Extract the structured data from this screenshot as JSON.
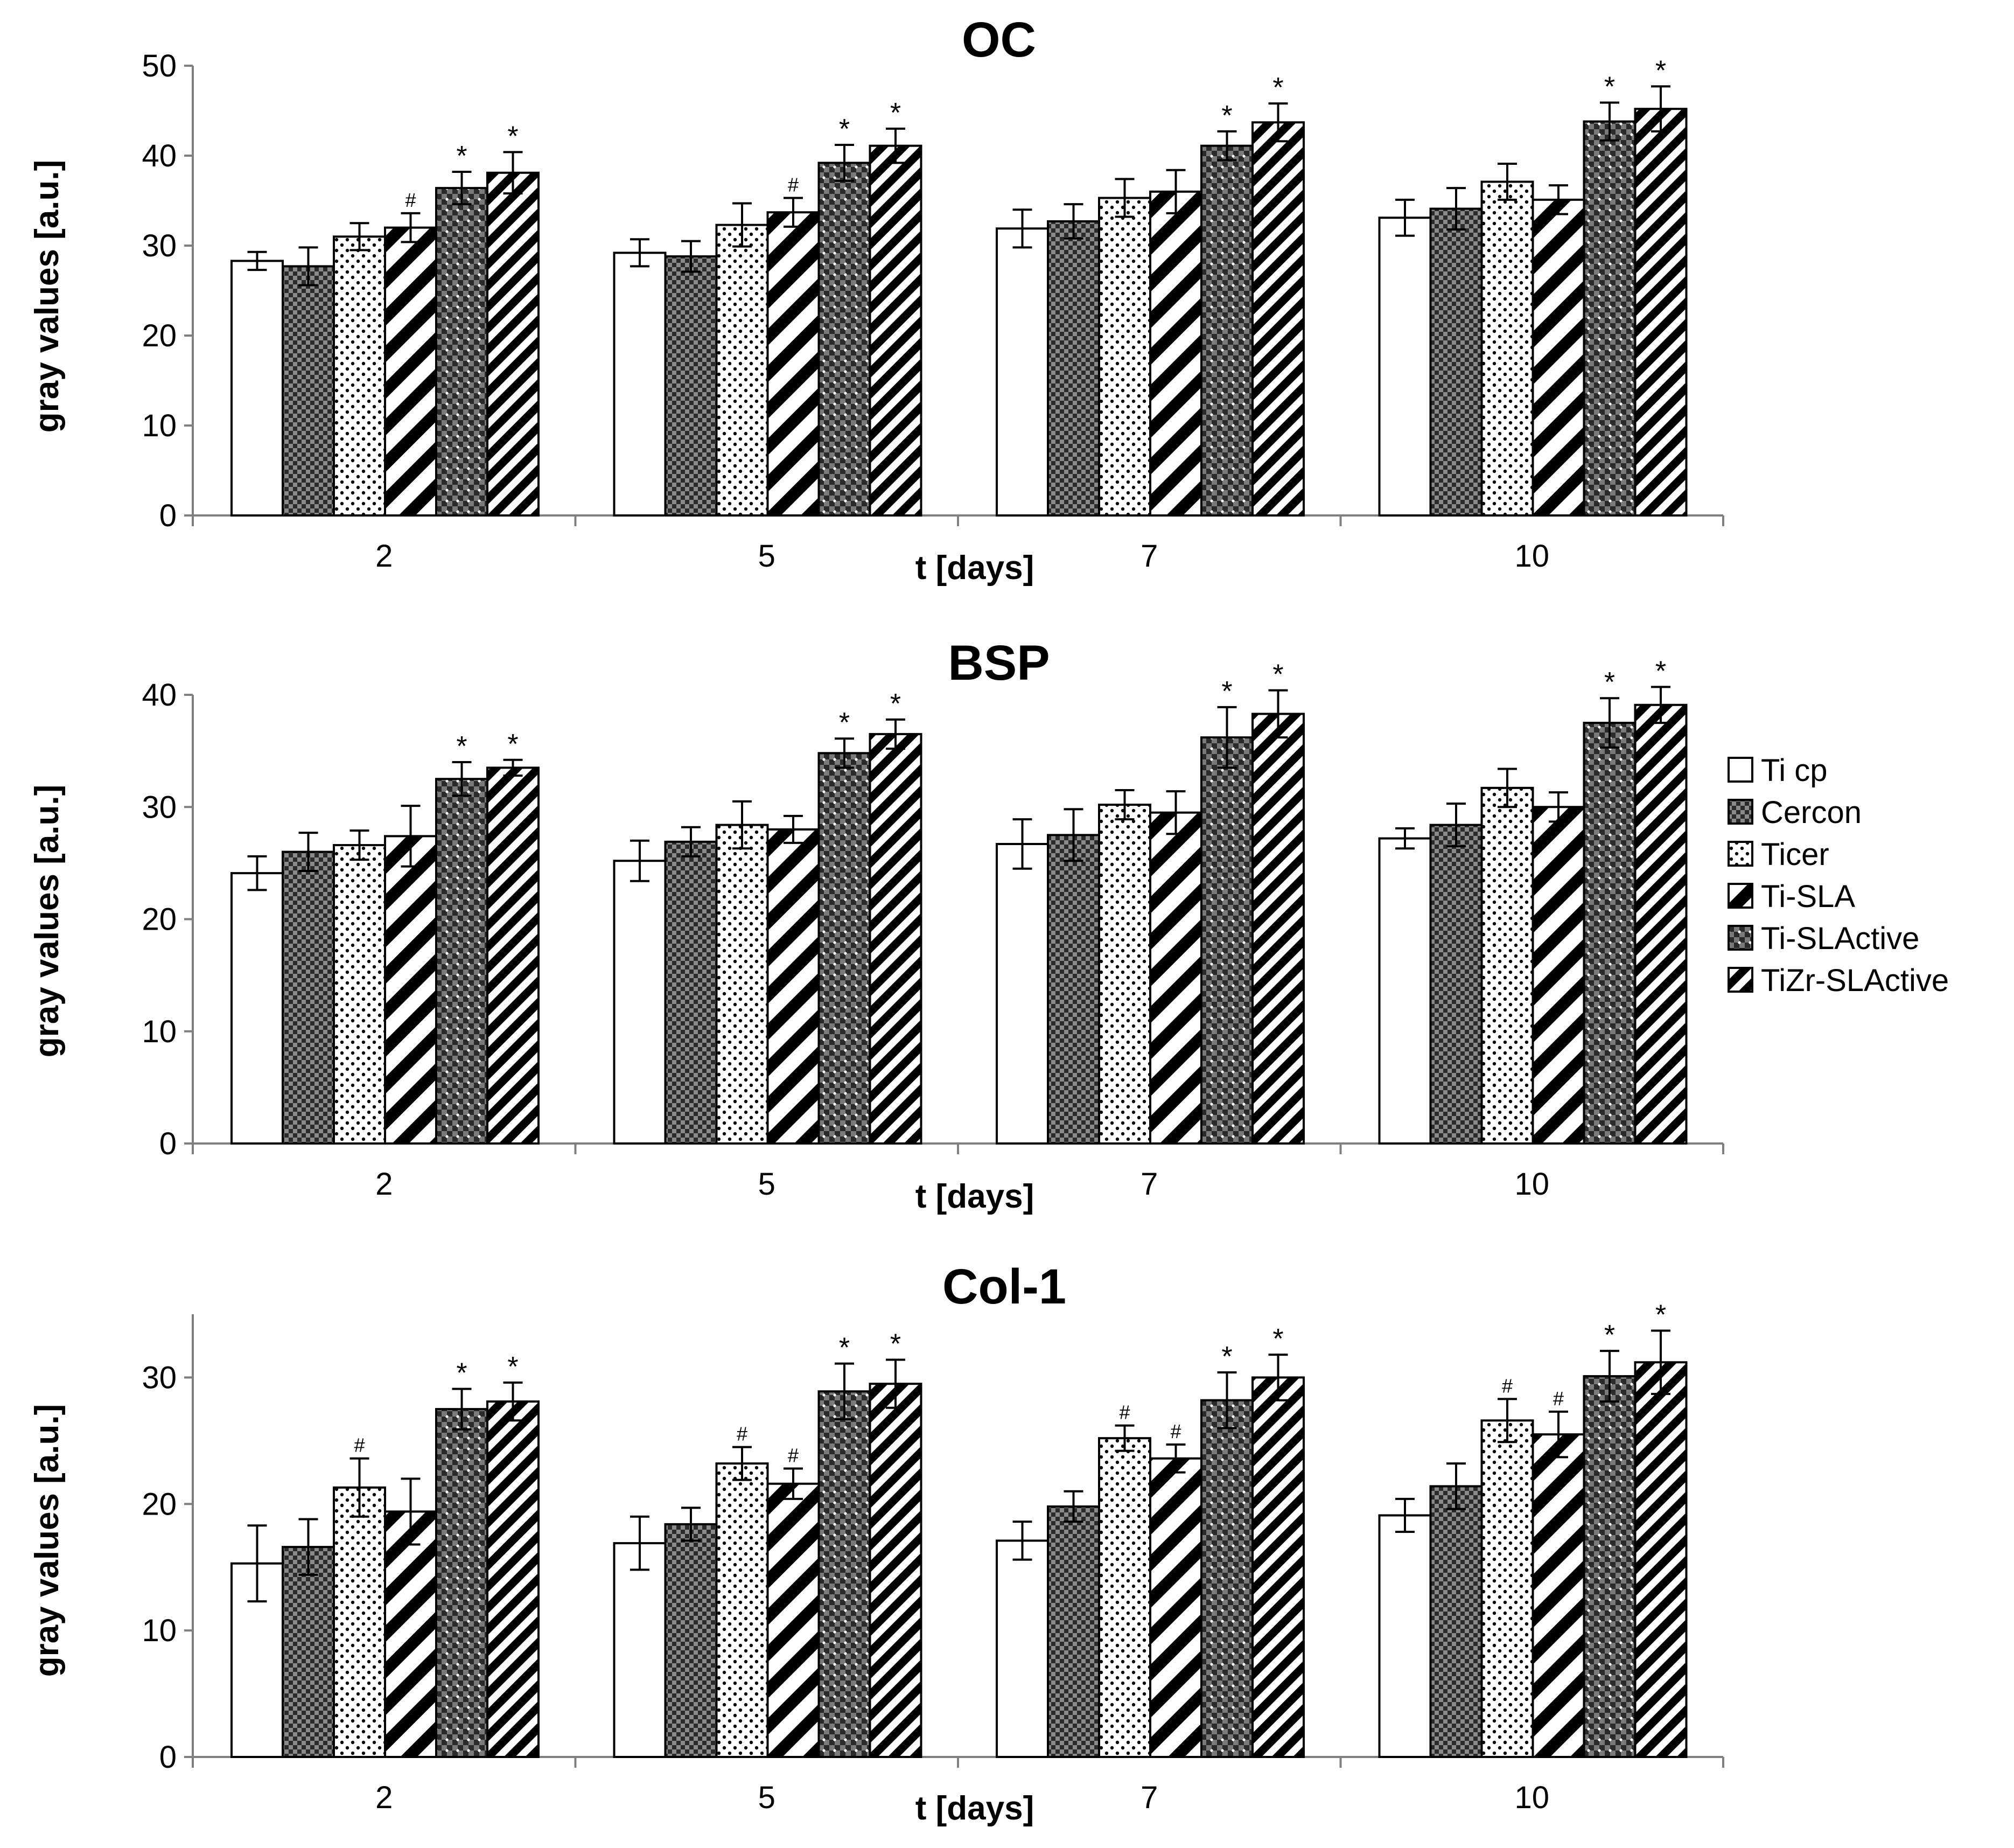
{
  "figure": {
    "legend": [
      {
        "name": "Ti cp",
        "pattern": "solid-white"
      },
      {
        "name": "Cercon",
        "pattern": "check-dark"
      },
      {
        "name": "Ticer",
        "pattern": "dots-light"
      },
      {
        "name": "Ti-SLA",
        "pattern": "diag-bold"
      },
      {
        "name": "Ti-SLActive",
        "pattern": "check-dark-dots"
      },
      {
        "name": "TiZr-SLActive",
        "pattern": "diag-fine"
      }
    ],
    "colors": {
      "bar_outline": "#000000",
      "axis": "#7f7f7f",
      "text": "#000000",
      "background": "#ffffff"
    }
  },
  "chart_data": [
    {
      "type": "bar",
      "title": "OC",
      "xlabel": "t [days]",
      "ylabel": "gray values [a.u.]",
      "ylim": [
        0,
        50
      ],
      "yticks": [
        0,
        10,
        20,
        30,
        40,
        50
      ],
      "categories": [
        "2",
        "5",
        "7",
        "10"
      ],
      "series": [
        {
          "name": "Ti cp",
          "values": [
            28.3,
            29.2,
            31.9,
            33.1
          ],
          "errors": [
            1.0,
            1.5,
            2.1,
            2.0
          ],
          "marks": [
            "",
            "",
            "",
            ""
          ]
        },
        {
          "name": "Cercon",
          "values": [
            27.7,
            28.8,
            32.7,
            34.1
          ],
          "errors": [
            2.1,
            1.7,
            1.9,
            2.3
          ],
          "marks": [
            "",
            "",
            "",
            ""
          ]
        },
        {
          "name": "Ticer",
          "values": [
            31.0,
            32.3,
            35.3,
            37.1
          ],
          "errors": [
            1.5,
            2.4,
            2.1,
            2.0
          ],
          "marks": [
            "",
            "",
            "",
            ""
          ]
        },
        {
          "name": "Ti-SLA",
          "values": [
            32.0,
            33.7,
            36.0,
            35.1
          ],
          "errors": [
            1.6,
            1.6,
            2.4,
            1.6
          ],
          "marks": [
            "#",
            "#",
            "",
            ""
          ]
        },
        {
          "name": "Ti-SLActive",
          "values": [
            36.4,
            39.2,
            41.1,
            43.8
          ],
          "errors": [
            1.8,
            2.0,
            1.6,
            2.1
          ],
          "marks": [
            "*",
            "*",
            "*",
            "*"
          ]
        },
        {
          "name": "TiZr-SLActive",
          "values": [
            38.1,
            41.1,
            43.7,
            45.2
          ],
          "errors": [
            2.3,
            1.9,
            2.1,
            2.5
          ],
          "marks": [
            "*",
            "*",
            "*",
            "*"
          ]
        }
      ]
    },
    {
      "type": "bar",
      "title": "BSP",
      "xlabel": "t [days]",
      "ylabel": "gray values [a.u.]",
      "ylim": [
        0,
        40
      ],
      "yticks": [
        0,
        10,
        20,
        30,
        40
      ],
      "categories": [
        "2",
        "5",
        "7",
        "10"
      ],
      "series": [
        {
          "name": "Ti cp",
          "values": [
            24.1,
            25.2,
            26.7,
            27.2
          ],
          "errors": [
            1.5,
            1.8,
            2.2,
            0.9
          ],
          "marks": [
            "",
            "",
            "",
            ""
          ]
        },
        {
          "name": "Cercon",
          "values": [
            26.0,
            26.9,
            27.5,
            28.4
          ],
          "errors": [
            1.7,
            1.3,
            2.3,
            1.9
          ],
          "marks": [
            "",
            "",
            "",
            ""
          ]
        },
        {
          "name": "Ticer",
          "values": [
            26.6,
            28.4,
            30.2,
            31.7
          ],
          "errors": [
            1.3,
            2.1,
            1.3,
            1.7
          ],
          "marks": [
            "",
            "",
            "",
            ""
          ]
        },
        {
          "name": "Ti-SLA",
          "values": [
            27.4,
            28.0,
            29.5,
            30.0
          ],
          "errors": [
            2.7,
            1.2,
            1.9,
            1.3
          ],
          "marks": [
            "",
            "",
            "",
            ""
          ]
        },
        {
          "name": "Ti-SLActive",
          "values": [
            32.5,
            34.8,
            36.2,
            37.5
          ],
          "errors": [
            1.5,
            1.3,
            2.7,
            2.2
          ],
          "marks": [
            "*",
            "*",
            "*",
            "*"
          ]
        },
        {
          "name": "TiZr-SLActive",
          "values": [
            33.5,
            36.5,
            38.3,
            39.1
          ],
          "errors": [
            0.7,
            1.3,
            2.1,
            1.6
          ],
          "marks": [
            "*",
            "*",
            "*",
            "*"
          ]
        }
      ]
    },
    {
      "type": "bar",
      "title": "Col-1",
      "xlabel": "t [days]",
      "ylabel": "gray values [a.u.]",
      "ylim": [
        0,
        35
      ],
      "yticks": [
        0,
        10,
        20,
        30
      ],
      "categories": [
        "2",
        "5",
        "7",
        "10"
      ],
      "series": [
        {
          "name": "Ti cp",
          "values": [
            15.3,
            16.9,
            17.1,
            19.1
          ],
          "errors": [
            3.0,
            2.1,
            1.5,
            1.3
          ],
          "marks": [
            "",
            "",
            "",
            ""
          ]
        },
        {
          "name": "Cercon",
          "values": [
            16.6,
            18.4,
            19.8,
            21.4
          ],
          "errors": [
            2.2,
            1.3,
            1.2,
            1.8
          ],
          "marks": [
            "",
            "",
            "",
            ""
          ]
        },
        {
          "name": "Ticer",
          "values": [
            21.3,
            23.2,
            25.2,
            26.6
          ],
          "errors": [
            2.3,
            1.3,
            1.0,
            1.7
          ],
          "marks": [
            "#",
            "#",
            "#",
            "#"
          ]
        },
        {
          "name": "Ti-SLA",
          "values": [
            19.4,
            21.6,
            23.6,
            25.5
          ],
          "errors": [
            2.6,
            1.2,
            1.1,
            1.8
          ],
          "marks": [
            "",
            "#",
            "#",
            "#"
          ]
        },
        {
          "name": "Ti-SLActive",
          "values": [
            27.5,
            28.9,
            28.2,
            30.1
          ],
          "errors": [
            1.6,
            2.2,
            2.2,
            2.0
          ],
          "marks": [
            "*",
            "*",
            "*",
            "*"
          ]
        },
        {
          "name": "TiZr-SLActive",
          "values": [
            28.1,
            29.5,
            30.0,
            31.2
          ],
          "errors": [
            1.5,
            1.9,
            1.8,
            2.5
          ],
          "marks": [
            "*",
            "*",
            "*",
            "*"
          ]
        }
      ]
    }
  ]
}
